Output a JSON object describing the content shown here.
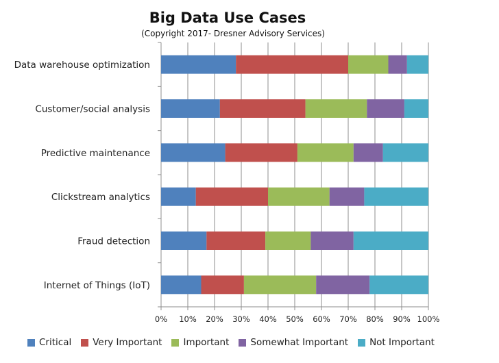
{
  "chart_data": {
    "type": "bar",
    "orientation": "horizontal",
    "stacked": true,
    "title": "Big Data Use Cases",
    "subtitle": "(Copyright 2017- Dresner Advisory Services)",
    "categories": [
      "Data warehouse optimization",
      "Customer/social analysis",
      "Predictive maintenance",
      "Clickstream analytics",
      "Fraud detection",
      "Internet of Things (IoT)"
    ],
    "series": [
      {
        "name": "Critical",
        "color": "#4f81bd",
        "values": [
          28,
          22,
          24,
          13,
          17,
          15
        ]
      },
      {
        "name": "Very Important",
        "color": "#c0504d",
        "values": [
          42,
          32,
          27,
          27,
          22,
          16
        ]
      },
      {
        "name": "Important",
        "color": "#9bbb59",
        "values": [
          15,
          23,
          21,
          23,
          17,
          27
        ]
      },
      {
        "name": "Somewhat Important",
        "color": "#8064a2",
        "values": [
          7,
          14,
          11,
          13,
          16,
          20
        ]
      },
      {
        "name": "Not Important",
        "color": "#4bacc6",
        "values": [
          8,
          9,
          17,
          24,
          28,
          22
        ]
      }
    ],
    "xlim": [
      0,
      100
    ],
    "x_ticks": [
      "0%",
      "10%",
      "20%",
      "30%",
      "40%",
      "50%",
      "60%",
      "70%",
      "80%",
      "90%",
      "100%"
    ],
    "grid": true,
    "legend_position": "bottom"
  }
}
